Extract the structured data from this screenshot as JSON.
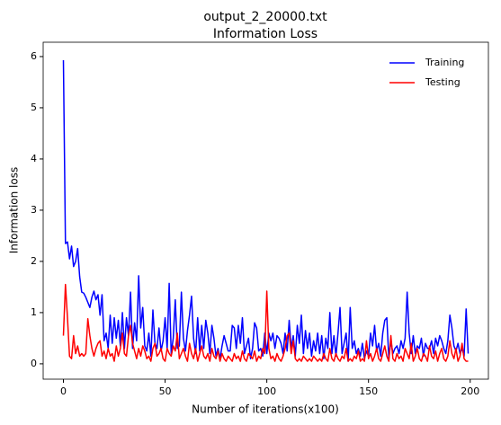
{
  "chart_data": {
    "type": "line",
    "title": "output_2_20000.txt",
    "subtitle": "Information Loss",
    "xlabel": "Number of iterations(x100)",
    "ylabel": "Information loss",
    "xlim": [
      -9.95,
      208.95
    ],
    "ylim": [
      -0.3,
      6.28
    ],
    "xticks": [
      0,
      50,
      100,
      150,
      200
    ],
    "yticks": [
      0,
      1,
      2,
      3,
      4,
      5,
      6
    ],
    "legend": "upper right",
    "grid": false,
    "x": [
      0,
      1,
      2,
      3,
      4,
      5,
      6,
      7,
      8,
      9,
      10,
      11,
      12,
      13,
      14,
      15,
      16,
      17,
      18,
      19,
      20,
      21,
      22,
      23,
      24,
      25,
      26,
      27,
      28,
      29,
      30,
      31,
      32,
      33,
      34,
      35,
      36,
      37,
      38,
      39,
      40,
      41,
      42,
      43,
      44,
      45,
      46,
      47,
      48,
      49,
      50,
      51,
      52,
      53,
      54,
      55,
      56,
      57,
      58,
      59,
      60,
      61,
      62,
      63,
      64,
      65,
      66,
      67,
      68,
      69,
      70,
      71,
      72,
      73,
      74,
      75,
      76,
      77,
      78,
      79,
      80,
      81,
      82,
      83,
      84,
      85,
      86,
      87,
      88,
      89,
      90,
      91,
      92,
      93,
      94,
      95,
      96,
      97,
      98,
      99,
      100,
      101,
      102,
      103,
      104,
      105,
      106,
      107,
      108,
      109,
      110,
      111,
      112,
      113,
      114,
      115,
      116,
      117,
      118,
      119,
      120,
      121,
      122,
      123,
      124,
      125,
      126,
      127,
      128,
      129,
      130,
      131,
      132,
      133,
      134,
      135,
      136,
      137,
      138,
      139,
      140,
      141,
      142,
      143,
      144,
      145,
      146,
      147,
      148,
      149,
      150,
      151,
      152,
      153,
      154,
      155,
      156,
      157,
      158,
      159,
      160,
      161,
      162,
      163,
      164,
      165,
      166,
      167,
      168,
      169,
      170,
      171,
      172,
      173,
      174,
      175,
      176,
      177,
      178,
      179,
      180,
      181,
      182,
      183,
      184,
      185,
      186,
      187,
      188,
      189,
      190,
      191,
      192,
      193,
      194,
      195,
      196,
      197,
      198,
      199
    ],
    "series": [
      {
        "name": "Training",
        "color": "#0000ff",
        "values": [
          5.93,
          2.35,
          2.38,
          2.05,
          2.3,
          1.9,
          2.0,
          2.25,
          1.7,
          1.4,
          1.38,
          1.3,
          1.2,
          1.1,
          1.3,
          1.42,
          1.25,
          1.35,
          0.95,
          1.35,
          0.45,
          0.6,
          0.3,
          0.95,
          0.4,
          0.9,
          0.5,
          0.85,
          0.35,
          1.0,
          0.3,
          0.9,
          0.55,
          1.4,
          0.3,
          0.8,
          0.45,
          1.72,
          0.7,
          1.1,
          0.35,
          0.25,
          0.6,
          0.15,
          1.05,
          0.4,
          0.3,
          0.7,
          0.25,
          0.45,
          0.9,
          0.3,
          1.57,
          0.2,
          0.5,
          1.25,
          0.3,
          0.35,
          1.4,
          0.5,
          0.25,
          0.65,
          0.95,
          1.32,
          0.5,
          0.2,
          0.9,
          0.25,
          0.75,
          0.3,
          0.85,
          0.6,
          0.2,
          0.75,
          0.5,
          0.15,
          0.3,
          0.1,
          0.35,
          0.55,
          0.4,
          0.25,
          0.25,
          0.75,
          0.7,
          0.3,
          0.75,
          0.4,
          0.9,
          0.2,
          0.35,
          0.5,
          0.1,
          0.3,
          0.8,
          0.7,
          0.25,
          0.3,
          0.15,
          0.6,
          0.2,
          0.6,
          0.45,
          0.6,
          0.3,
          0.55,
          0.5,
          0.4,
          0.2,
          0.6,
          0.25,
          0.85,
          0.3,
          0.55,
          0.15,
          0.75,
          0.4,
          0.95,
          0.2,
          0.65,
          0.3,
          0.6,
          0.15,
          0.45,
          0.25,
          0.6,
          0.2,
          0.55,
          0.1,
          0.5,
          0.3,
          1.0,
          0.2,
          0.55,
          0.15,
          0.6,
          1.1,
          0.2,
          0.4,
          0.6,
          0.05,
          1.1,
          0.3,
          0.45,
          0.2,
          0.3,
          0.15,
          0.4,
          0.1,
          0.25,
          0.15,
          0.6,
          0.35,
          0.75,
          0.25,
          0.4,
          0.15,
          0.6,
          0.85,
          0.9,
          0.1,
          0.45,
          0.2,
          0.3,
          0.35,
          0.2,
          0.45,
          0.3,
          0.5,
          1.4,
          0.6,
          0.2,
          0.55,
          0.2,
          0.35,
          0.3,
          0.5,
          0.15,
          0.4,
          0.3,
          0.3,
          0.45,
          0.2,
          0.5,
          0.35,
          0.55,
          0.45,
          0.3,
          0.2,
          0.45,
          0.95,
          0.7,
          0.35,
          0.25,
          0.4,
          0.2,
          0.3,
          0.15,
          1.07,
          0.2
        ]
      },
      {
        "name": "Testing",
        "color": "#ff0000",
        "values": [
          0.55,
          1.55,
          0.9,
          0.15,
          0.1,
          0.55,
          0.2,
          0.35,
          0.15,
          0.2,
          0.15,
          0.2,
          0.88,
          0.55,
          0.3,
          0.15,
          0.3,
          0.4,
          0.45,
          0.15,
          0.25,
          0.1,
          0.3,
          0.15,
          0.2,
          0.05,
          0.35,
          0.15,
          0.3,
          0.6,
          0.2,
          0.15,
          0.55,
          0.75,
          0.4,
          0.25,
          0.1,
          0.3,
          0.15,
          0.35,
          0.25,
          0.1,
          0.15,
          0.05,
          0.3,
          0.4,
          0.15,
          0.2,
          0.3,
          0.1,
          0.05,
          0.3,
          0.2,
          0.15,
          0.35,
          0.25,
          0.6,
          0.1,
          0.2,
          0.3,
          0.15,
          0.05,
          0.4,
          0.2,
          0.1,
          0.3,
          0.05,
          0.2,
          0.35,
          0.15,
          0.1,
          0.2,
          0.05,
          0.3,
          0.15,
          0.1,
          0.25,
          0.05,
          0.2,
          0.1,
          0.05,
          0.15,
          0.1,
          0.05,
          0.2,
          0.1,
          0.15,
          0.05,
          0.25,
          0.1,
          0.05,
          0.2,
          0.15,
          0.1,
          0.25,
          0.05,
          0.15,
          0.1,
          0.3,
          0.2,
          1.42,
          0.3,
          0.1,
          0.15,
          0.05,
          0.2,
          0.1,
          0.05,
          0.15,
          0.3,
          0.55,
          0.6,
          0.2,
          0.45,
          0.1,
          0.05,
          0.1,
          0.05,
          0.15,
          0.1,
          0.05,
          0.1,
          0.05,
          0.15,
          0.1,
          0.05,
          0.1,
          0.05,
          0.2,
          0.1,
          0.05,
          0.3,
          0.1,
          0.05,
          0.2,
          0.1,
          0.05,
          0.15,
          0.1,
          0.3,
          0.05,
          0.1,
          0.05,
          0.15,
          0.1,
          0.25,
          0.05,
          0.1,
          0.05,
          0.45,
          0.1,
          0.2,
          0.05,
          0.15,
          0.3,
          0.1,
          0.05,
          0.2,
          0.35,
          0.15,
          0.05,
          0.55,
          0.1,
          0.05,
          0.2,
          0.1,
          0.15,
          0.05,
          0.3,
          0.2,
          0.1,
          0.4,
          0.05,
          0.15,
          0.3,
          0.1,
          0.05,
          0.2,
          0.15,
          0.05,
          0.35,
          0.15,
          0.1,
          0.25,
          0.05,
          0.2,
          0.3,
          0.1,
          0.05,
          0.15,
          0.45,
          0.2,
          0.1,
          0.3,
          0.05,
          0.15,
          0.4,
          0.1,
          0.05,
          0.05
        ]
      }
    ]
  }
}
